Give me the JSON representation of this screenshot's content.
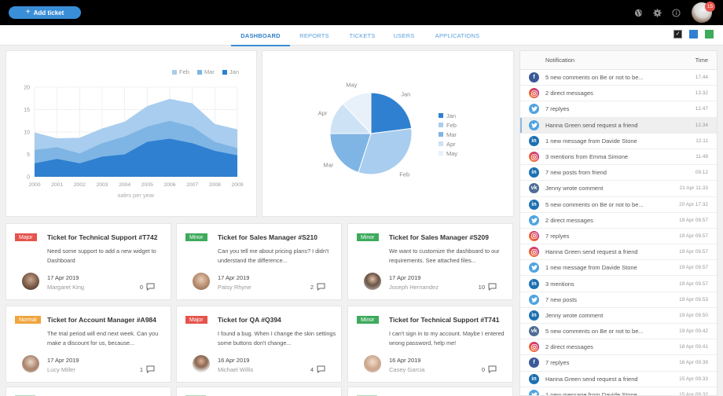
{
  "topbar": {
    "add_ticket_label": "Add ticket",
    "add_ticket_icon": "plus-icon",
    "icons": [
      "globe-icon",
      "gear-icon",
      "info-icon"
    ],
    "notification_count": "15"
  },
  "nav": {
    "tabs": [
      {
        "label": "DASHBOARD",
        "active": true
      },
      {
        "label": "REPORTS",
        "active": false
      },
      {
        "label": "TICKETS",
        "active": false
      },
      {
        "label": "USERS",
        "active": false
      },
      {
        "label": "APPLICATIONS",
        "active": false
      }
    ],
    "theme_swatches": [
      {
        "name": "dark",
        "color": "#222222",
        "selected": true
      },
      {
        "name": "blue",
        "color": "#2f80d1",
        "selected": false
      },
      {
        "name": "green",
        "color": "#3daa5c",
        "selected": false
      }
    ]
  },
  "chart_data": [
    {
      "type": "area",
      "stacked": true,
      "title": "",
      "xlabel": "sales per year",
      "ylabel": "",
      "x": [
        "2000",
        "2001",
        "2002",
        "2003",
        "2004",
        "2005",
        "2006",
        "2007",
        "2008",
        "2009"
      ],
      "ylim": [
        0,
        20
      ],
      "yticks": [
        0,
        5,
        10,
        15,
        20
      ],
      "grid": true,
      "legend_position": "top-right",
      "legend": [
        "Feb",
        "Mar",
        "Jan"
      ],
      "series": [
        {
          "name": "Jan",
          "color": "#2f80d1",
          "values": [
            3,
            4,
            3,
            4.5,
            5,
            7.8,
            8.5,
            7.5,
            5.8,
            4.8
          ]
        },
        {
          "name": "Mar",
          "color": "#7fb5e4",
          "values": [
            3,
            2.6,
            2.2,
            3,
            4,
            3.4,
            4,
            3.7,
            2,
            1.6
          ]
        },
        {
          "name": "Feb",
          "color": "#a9cdee",
          "values": [
            3.9,
            2,
            3.5,
            3.3,
            3.3,
            4.6,
            4.9,
            5.2,
            4,
            4.2
          ]
        }
      ],
      "stack_totals": [
        9.9,
        8.6,
        8.7,
        10.8,
        12.3,
        15.8,
        17.4,
        16.4,
        11.8,
        10.6
      ]
    },
    {
      "type": "pie",
      "title": "",
      "labels": [
        "Jan",
        "Feb",
        "Mar",
        "Apr",
        "May"
      ],
      "values": [
        23,
        32,
        20,
        13,
        12
      ],
      "colors": [
        "#2f80d1",
        "#a9cdee",
        "#7fb5e4",
        "#cde2f5",
        "#e8f1fa"
      ],
      "legend_position": "right"
    }
  ],
  "notifications": {
    "header": {
      "notification": "Notification",
      "time": "Time"
    },
    "rows": [
      {
        "icon": "facebook",
        "text": "5 new comments on Be or not to be...",
        "time": "17.44"
      },
      {
        "icon": "instagram",
        "text": "2 direct messages",
        "time": "13.32"
      },
      {
        "icon": "twitter",
        "text": "7 replyes",
        "time": "12.47"
      },
      {
        "icon": "twitter",
        "text": "Hanna Green send request a friend",
        "time": "12.34",
        "highlight": true
      },
      {
        "icon": "linkedin",
        "text": "1 new message from Davide Stone",
        "time": "12.11"
      },
      {
        "icon": "instagram",
        "text": "3 mentions from Emma Simone",
        "time": "11.48"
      },
      {
        "icon": "linkedin",
        "text": "7 new posts from friend",
        "time": "09.12"
      },
      {
        "icon": "vk",
        "text": "Jenny wrote comment",
        "time": "21 Apr 11.33"
      },
      {
        "icon": "linkedin",
        "text": "5 new comments on Be or not to be...",
        "time": "20 Apr 17.32"
      },
      {
        "icon": "twitter",
        "text": "2 direct messages",
        "time": "19 Apr 09.57"
      },
      {
        "icon": "instagram",
        "text": "7 replyes",
        "time": "19 Apr 09.57"
      },
      {
        "icon": "instagram",
        "text": "Hanna Green send request a friend",
        "time": "19 Apr 09.57"
      },
      {
        "icon": "twitter",
        "text": "1 new message from Davide Stone",
        "time": "19 Apr 09.57"
      },
      {
        "icon": "linkedin",
        "text": "3 mentions",
        "time": "19 Apr 09.57"
      },
      {
        "icon": "twitter",
        "text": "7 new posts",
        "time": "19 Apr 09.53"
      },
      {
        "icon": "linkedin",
        "text": "Jenny wrote comment",
        "time": "19 Apr 09.50"
      },
      {
        "icon": "vk",
        "text": "5 new comments on Be or not to be...",
        "time": "19 Apr 09.42"
      },
      {
        "icon": "instagram",
        "text": "2 direct messages",
        "time": "18 Apr 09.41"
      },
      {
        "icon": "facebook",
        "text": "7 replyes",
        "time": "16 Apr 09.39"
      },
      {
        "icon": "linkedin",
        "text": "Hanna Green send request a friend",
        "time": "15 Apr 09.33"
      },
      {
        "icon": "twitter",
        "text": "1 new message from Davide Stone",
        "time": "15 Apr 09.32"
      }
    ]
  },
  "tickets": [
    {
      "priority": "Major",
      "title": "Ticket for Technical Support #T742",
      "desc": "Need some support to add a new widget to Dashboard",
      "date": "17 Apr 2019",
      "author": "Margaret King",
      "comments": "0"
    },
    {
      "priority": "Minor",
      "title": "Ticket for Sales Manager #S210",
      "desc": "Can you tell me about pricing plans? I didn't understand the difference...",
      "date": "17 Apr 2019",
      "author": "Patsy Rhyne",
      "comments": "2"
    },
    {
      "priority": "Minor",
      "title": "Ticket for Sales Manager #S209",
      "desc": "We want to customize the dashboard to our requirements. See attached files...",
      "date": "17 Apr 2019",
      "author": "Joseph Hernandez",
      "comments": "10"
    },
    {
      "priority": "Normal",
      "title": "Ticket for Account Manager #A984",
      "desc": "The trial period will end next week. Can you make a discount for us, because...",
      "date": "17 Apr 2019",
      "author": "Lucy Miller",
      "comments": "1"
    },
    {
      "priority": "Major",
      "title": "Ticket for QA #Q394",
      "desc": "I found a bug. When I change the skin settings some buttons don't change...",
      "date": "16 Apr 2019",
      "author": "Michael Willis",
      "comments": "4"
    },
    {
      "priority": "Minor",
      "title": "Ticket for Technical Support #T741",
      "desc": "I can't sign in to my account. Maybe I entered wrong password, help me!",
      "date": "16 Apr 2019",
      "author": "Casey Garcia",
      "comments": "0"
    }
  ],
  "colors": {
    "accent": "#3a8ed8",
    "major": "#e5534b",
    "minor": "#3daa5c",
    "normal": "#f0a43c"
  }
}
